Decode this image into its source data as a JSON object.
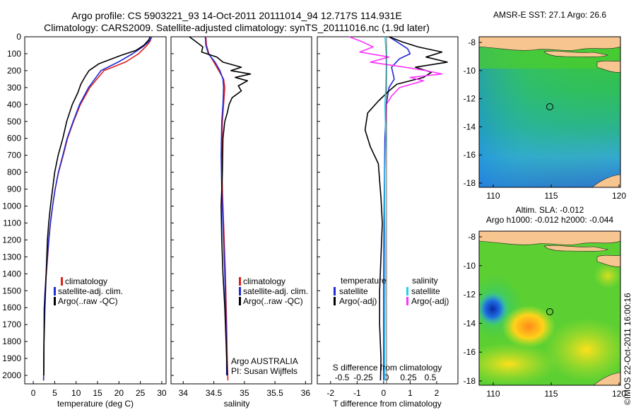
{
  "figure": {
    "title_line1": "Argo profile: CS 5903221_93 14-Oct-2011 20111014_94 12.717S 114.931E",
    "title_line2": "Climatology: CARS2009. Satellite-adjusted climatology: synTS_20111016.nc (1.9d later)",
    "credit": "©IMOS 22-Oct-2011 16:00:16"
  },
  "depth_ticks": [
    "0",
    "100",
    "200",
    "300",
    "400",
    "500",
    "600",
    "700",
    "800",
    "900",
    "1000",
    "1100",
    "1200",
    "1300",
    "1400",
    "1500",
    "1600",
    "1700",
    "1800",
    "1900",
    "2000"
  ],
  "colors": {
    "climatology": "#e0201c",
    "satellite": "#1f2bd6",
    "argo": "#000000",
    "salinity_satellite": "#22d3e6",
    "salinity_argo": "#ff33ff",
    "land": "#f7c58f"
  },
  "chart_data": [
    {
      "id": "temperature",
      "type": "line",
      "xlabel": "temperature (deg C)",
      "ylabel": "",
      "xlim": [
        -2,
        31
      ],
      "ylim": [
        2050,
        0
      ],
      "xticks": [
        0,
        5,
        10,
        15,
        20,
        25,
        30
      ],
      "legend": [
        "climatology",
        "satellite-adj. clim.",
        "Argo(..raw -QC)"
      ],
      "series": [
        {
          "name": "climatology",
          "color": "#e0201c",
          "x": [
            27.6,
            27.3,
            26.4,
            24.6,
            21.5,
            16.5,
            13.2,
            11.0,
            9.4,
            8.0,
            7.0,
            5.9,
            5.1,
            4.5,
            4.0,
            3.65,
            3.35,
            3.05,
            2.75,
            2.55,
            2.4
          ],
          "y": [
            0,
            25,
            55,
            100,
            150,
            200,
            300,
            400,
            500,
            600,
            700,
            800,
            900,
            1000,
            1100,
            1200,
            1300,
            1400,
            1500,
            1600,
            2030
          ]
        },
        {
          "name": "satellite-adj. clim.",
          "color": "#1f2bd6",
          "x": [
            27.7,
            27.1,
            25.8,
            23.2,
            19.8,
            15.8,
            12.9,
            10.8,
            9.3,
            7.9,
            6.9,
            5.85,
            5.1,
            4.5,
            4.0,
            3.6,
            3.3,
            3.0,
            2.75,
            2.55,
            2.4
          ],
          "y": [
            0,
            25,
            55,
            100,
            150,
            200,
            300,
            400,
            500,
            600,
            700,
            800,
            900,
            1000,
            1100,
            1200,
            1300,
            1400,
            1500,
            1600,
            2030
          ]
        },
        {
          "name": "Argo(..raw -QC)",
          "color": "#000000",
          "x": [
            27.3,
            26.9,
            25.8,
            24.0,
            20.5,
            15.3,
            13.0,
            12.0,
            11.1,
            10.4,
            9.1,
            7.8,
            6.9,
            5.8,
            5.0,
            4.5,
            4.0,
            3.6,
            3.3,
            3.0,
            2.7,
            2.5,
            2.45
          ],
          "y": [
            0,
            20,
            50,
            80,
            110,
            160,
            200,
            240,
            280,
            330,
            400,
            500,
            600,
            700,
            800,
            900,
            1000,
            1100,
            1200,
            1400,
            1600,
            1800,
            2000
          ]
        }
      ]
    },
    {
      "id": "salinity",
      "type": "line",
      "xlabel": "salinity",
      "xlim": [
        33.8,
        36.1
      ],
      "ylim": [
        2050,
        0
      ],
      "xticks": [
        34,
        34.5,
        35,
        35.5,
        36
      ],
      "legend": [
        "climatology",
        "satellite-adj. clim.",
        "Argo(..raw -QC)"
      ],
      "annotation_line1": "Argo AUSTRALIA",
      "annotation_line2": "PI: Susan Wijffels",
      "series": [
        {
          "name": "climatology",
          "color": "#e0201c",
          "x": [
            34.37,
            34.38,
            34.42,
            34.5,
            34.58,
            34.66,
            34.68,
            34.66,
            34.64,
            34.63,
            34.64,
            34.66,
            34.69,
            34.71,
            34.72,
            34.73
          ],
          "y": [
            0,
            50,
            100,
            150,
            200,
            250,
            300,
            400,
            500,
            700,
            900,
            1100,
            1400,
            1700,
            1900,
            2030
          ]
        },
        {
          "name": "satellite-adj. clim.",
          "color": "#1f2bd6",
          "x": [
            34.36,
            34.37,
            34.41,
            34.52,
            34.6,
            34.65,
            34.66,
            34.65,
            34.63,
            34.62,
            34.63,
            34.65,
            34.68,
            34.7,
            34.71,
            34.71
          ],
          "y": [
            0,
            50,
            100,
            150,
            200,
            250,
            300,
            400,
            500,
            700,
            900,
            1100,
            1400,
            1700,
            1900,
            2000
          ]
        },
        {
          "name": "Argo(..raw -QC)",
          "color": "#000000",
          "x": [
            34.1,
            34.25,
            34.32,
            34.3,
            34.55,
            34.65,
            34.95,
            34.78,
            35.1,
            34.85,
            35.05,
            34.9,
            34.95,
            34.8,
            34.75,
            34.72,
            34.68,
            34.65,
            34.64,
            34.62,
            34.63,
            34.65,
            34.68,
            34.7,
            34.72
          ],
          "y": [
            0,
            40,
            60,
            90,
            120,
            150,
            180,
            200,
            220,
            240,
            260,
            290,
            320,
            360,
            400,
            450,
            500,
            600,
            800,
            1000,
            1200,
            1400,
            1600,
            1800,
            2000
          ]
        }
      ]
    },
    {
      "id": "difference",
      "type": "line",
      "xlabel": "T difference from climatology",
      "xlabel2": "S difference from climatology",
      "xlim": [
        -2.5,
        2.8
      ],
      "ylim": [
        2050,
        0
      ],
      "xticks": [
        -2,
        -1,
        0,
        1,
        2
      ],
      "xticks_s": [
        "-0.5",
        "-0.25",
        "0",
        "0.25",
        "0.5"
      ],
      "legend_temperature_title": "temperature",
      "legend_salinity_title": "salinity",
      "legend": [
        "satellite",
        "Argo(-adj)",
        "satellite",
        "Argo(-adj)"
      ],
      "series": [
        {
          "name": "temperature satellite",
          "color": "#1f2bd6",
          "x": [
            0.2,
            0.6,
            0.9,
            1.0,
            0.6,
            0.3,
            0.4,
            0.2,
            0.1,
            0.05,
            0.02,
            0.0,
            0.0
          ],
          "y": [
            0,
            40,
            70,
            100,
            130,
            180,
            250,
            300,
            400,
            600,
            1000,
            1500,
            2030
          ]
        },
        {
          "name": "temperature Argo(-adj)",
          "color": "#000000",
          "x": [
            0.2,
            0.7,
            1.3,
            2.2,
            1.6,
            2.4,
            1.2,
            1.8,
            1.5,
            0.5,
            0.2,
            -0.2,
            -0.6,
            -0.7,
            -0.5,
            -0.2,
            -0.15,
            -0.1,
            -0.05,
            -0.1,
            -0.15,
            -0.15,
            -0.1,
            -0.12
          ],
          "y": [
            0,
            30,
            60,
            90,
            120,
            150,
            180,
            210,
            240,
            280,
            320,
            380,
            450,
            550,
            650,
            750,
            850,
            950,
            1100,
            1300,
            1500,
            1700,
            1900,
            2030
          ]
        },
        {
          "name": "salinity satellite",
          "color": "#22d3e6",
          "x": [
            0.05,
            0.1,
            0.1,
            0.08,
            0.05,
            0.08,
            0.05,
            0.04,
            0.06,
            0.05,
            0.04,
            0.05
          ],
          "y": [
            0,
            100,
            200,
            300,
            400,
            600,
            800,
            1000,
            1300,
            1600,
            1900,
            2030
          ]
        },
        {
          "name": "salinity Argo(-adj)",
          "color": "#ff33ff",
          "x": [
            -1.3,
            -0.8,
            -0.4,
            -0.9,
            0.2,
            -0.5,
            0.8,
            1.6,
            2.2,
            1.0,
            1.5,
            0.6,
            0.3,
            0.1,
            0.08
          ],
          "y": [
            0,
            30,
            60,
            90,
            120,
            150,
            180,
            200,
            220,
            240,
            260,
            300,
            350,
            400,
            500
          ]
        }
      ]
    }
  ],
  "maps": {
    "sst": {
      "title": "AMSR-E SST: 27.1  Argo: 26.6",
      "xticks": [
        "110",
        "115",
        "120"
      ],
      "yticks": [
        "-8",
        "-10",
        "-12",
        "-14",
        "-16",
        "-18"
      ]
    },
    "sla": {
      "title_line1": "Altim. SLA: -0.012",
      "title_line2": "Argo h1000: -0.012  h2000: -0.044",
      "xticks": [
        "110",
        "115",
        "120"
      ],
      "yticks": [
        "-8",
        "-10",
        "-12",
        "-14",
        "-16",
        "-18"
      ]
    }
  }
}
